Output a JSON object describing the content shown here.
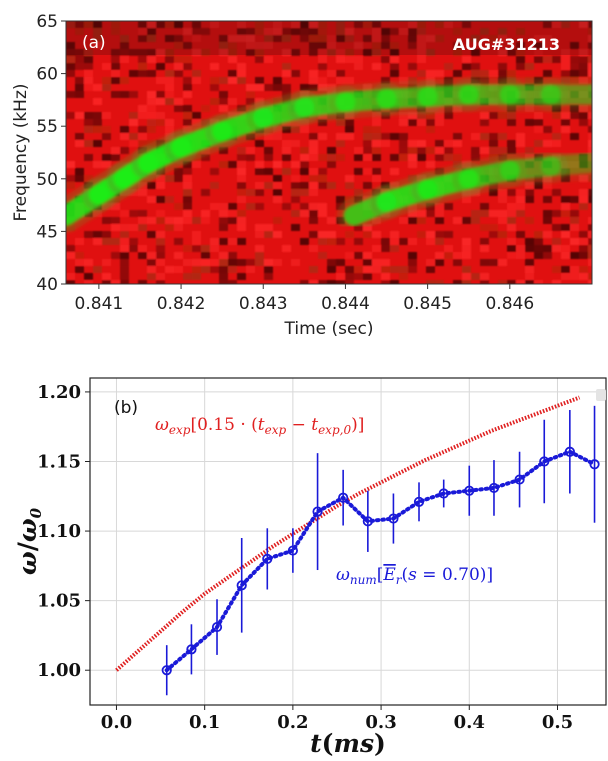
{
  "chart_data": [
    {
      "type": "heatmap",
      "panel_label": "(a)",
      "annotation": "AUG#31213",
      "xlabel": "Time (sec)",
      "ylabel": "Frequency (kHz)",
      "xlim": [
        0.8406,
        0.847
      ],
      "ylim": [
        40,
        65
      ],
      "xticks": [
        0.841,
        0.842,
        0.843,
        0.844,
        0.845,
        0.846
      ],
      "xtick_labels": [
        "0.841",
        "0.842",
        "0.843",
        "0.844",
        "0.845",
        "0.846"
      ],
      "yticks": [
        40,
        45,
        50,
        55,
        60,
        65
      ],
      "ytick_labels": [
        "40",
        "45",
        "50",
        "55",
        "60",
        "65"
      ],
      "colormap": {
        "low": "#e01010",
        "high": "#19f019",
        "dark": "#300606"
      },
      "ridges": [
        {
          "x": [
            0.8406,
            0.841,
            0.8413,
            0.8416,
            0.842,
            0.8425,
            0.843,
            0.8435,
            0.844,
            0.8445,
            0.845,
            0.8455,
            0.846,
            0.8465,
            0.847
          ],
          "y": [
            46.5,
            48.5,
            50.0,
            51.5,
            53.0,
            54.5,
            55.8,
            56.8,
            57.3,
            57.6,
            57.8,
            58.0,
            58.0,
            58.0,
            58.0
          ],
          "strength": [
            0.85,
            0.95,
            1.0,
            1.0,
            0.95,
            0.9,
            0.85,
            0.8,
            0.75,
            0.7,
            0.7,
            0.65,
            0.6,
            0.55,
            0.5
          ]
        },
        {
          "x": [
            0.8441,
            0.8445,
            0.845,
            0.8455,
            0.846,
            0.8465,
            0.847
          ],
          "y": [
            46.5,
            47.8,
            49.0,
            50.0,
            50.8,
            51.2,
            51.5
          ],
          "strength": [
            0.7,
            0.85,
            0.9,
            0.8,
            0.6,
            0.45,
            0.35
          ]
        }
      ]
    },
    {
      "type": "line",
      "panel_label": "(b)",
      "xlabel": "t(ms)",
      "ylabel": "ω/ω0",
      "xlim": [
        -0.03,
        0.555
      ],
      "ylim": [
        0.975,
        1.21
      ],
      "xticks": [
        0.0,
        0.1,
        0.2,
        0.3,
        0.4,
        0.5
      ],
      "xtick_labels": [
        "0.0",
        "0.1",
        "0.2",
        "0.3",
        "0.4",
        "0.5"
      ],
      "yticks": [
        1.0,
        1.05,
        1.1,
        1.15,
        1.2
      ],
      "ytick_labels": [
        "1.00",
        "1.05",
        "1.10",
        "1.15",
        "1.20"
      ],
      "grid": true,
      "series": [
        {
          "name": "ω_exp[0.15 · (t_exp − t_exp,0)]",
          "color": "#e02020",
          "style": "dotted",
          "x": [
            0.0,
            0.025,
            0.05,
            0.075,
            0.1,
            0.125,
            0.15,
            0.175,
            0.2,
            0.225,
            0.25,
            0.275,
            0.3,
            0.325,
            0.35,
            0.375,
            0.4,
            0.425,
            0.45,
            0.475,
            0.5,
            0.525
          ],
          "y": [
            1.0,
            1.014,
            1.028,
            1.042,
            1.055,
            1.066,
            1.077,
            1.088,
            1.098,
            1.108,
            1.118,
            1.127,
            1.135,
            1.143,
            1.151,
            1.158,
            1.165,
            1.172,
            1.178,
            1.184,
            1.19,
            1.196
          ]
        },
        {
          "name": "ω_num[E̅_r(s = 0.70)]",
          "color": "#1a1ad8",
          "style": "dotted-markers",
          "x": [
            0.057,
            0.085,
            0.114,
            0.142,
            0.171,
            0.2,
            0.228,
            0.257,
            0.285,
            0.314,
            0.343,
            0.371,
            0.4,
            0.428,
            0.457,
            0.485,
            0.514,
            0.542
          ],
          "y": [
            1.0,
            1.015,
            1.031,
            1.061,
            1.08,
            1.086,
            1.114,
            1.124,
            1.107,
            1.109,
            1.121,
            1.127,
            1.129,
            1.131,
            1.137,
            1.15,
            1.157,
            1.148
          ],
          "err": [
            0.018,
            0.018,
            0.02,
            0.034,
            0.022,
            0.016,
            0.042,
            0.02,
            0.022,
            0.018,
            0.014,
            0.01,
            0.018,
            0.02,
            0.02,
            0.03,
            0.03,
            0.042
          ]
        }
      ]
    }
  ]
}
